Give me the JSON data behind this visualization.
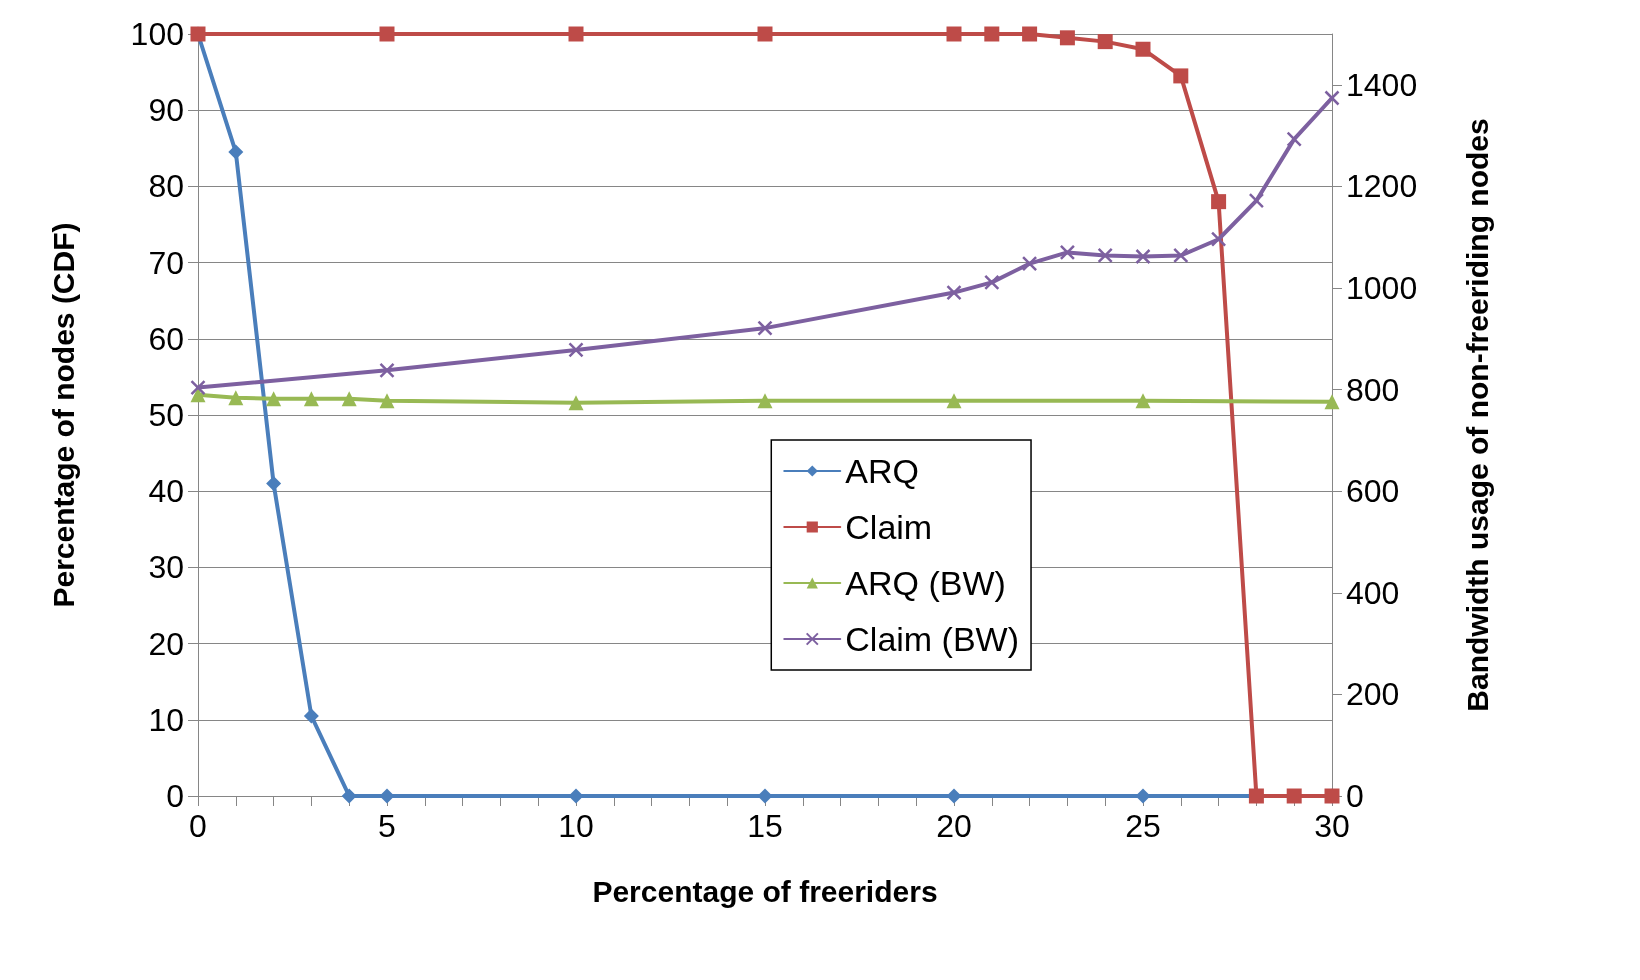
{
  "chart_data": {
    "type": "line",
    "xlabel": "Percentage of freeriders",
    "ylabel": "Percentage of nodes (CDF)",
    "y2label": "Bandwidth usage of non-freeriding nodes",
    "xlim": [
      0,
      30
    ],
    "xticks": [
      0,
      {
        "value": 1,
        "label": null
      },
      {
        "value": 2,
        "label": null
      },
      {
        "value": 3,
        "label": null
      },
      {
        "value": 4,
        "label": null
      },
      5,
      {
        "value": 6,
        "label": null
      },
      {
        "value": 7,
        "label": null
      },
      {
        "value": 8,
        "label": null
      },
      {
        "value": 9,
        "label": null
      },
      10,
      {
        "value": 11,
        "label": null
      },
      {
        "value": 12,
        "label": null
      },
      {
        "value": 13,
        "label": null
      },
      {
        "value": 14,
        "label": null
      },
      15,
      {
        "value": 16,
        "label": null
      },
      {
        "value": 17,
        "label": null
      },
      {
        "value": 18,
        "label": null
      },
      {
        "value": 19,
        "label": null
      },
      20,
      {
        "value": 21,
        "label": null
      },
      {
        "value": 22,
        "label": null
      },
      {
        "value": 23,
        "label": null
      },
      {
        "value": 24,
        "label": null
      },
      25,
      {
        "value": 26,
        "label": null
      },
      {
        "value": 27,
        "label": null
      },
      {
        "value": 28,
        "label": null
      },
      {
        "value": 29,
        "label": null
      },
      30
    ],
    "ylim": [
      0,
      100
    ],
    "yticks": [
      0,
      10,
      20,
      30,
      40,
      50,
      60,
      70,
      80,
      90,
      100
    ],
    "y2lim": [
      0,
      1500
    ],
    "y2ticks": [
      0,
      200,
      400,
      600,
      800,
      1000,
      1200,
      1400
    ],
    "grid": "y",
    "legend": "bottom",
    "line_style": "solid",
    "series": [
      {
        "name": "ARQ",
        "color": "#4a7ebb",
        "marker": "diamond",
        "x": [
          0,
          1,
          2,
          3,
          4,
          5,
          10,
          15,
          20,
          25,
          30
        ],
        "values": [
          100,
          84.5,
          41,
          10.5,
          0,
          0,
          0,
          0,
          0,
          0,
          0
        ]
      },
      {
        "name": "Claim",
        "color": "#be4b48",
        "marker": "square",
        "x": [
          0,
          5,
          10,
          15,
          20,
          21,
          22,
          23,
          24,
          25,
          26,
          27,
          28,
          29,
          30
        ],
        "values": [
          100,
          100,
          100,
          100,
          100,
          100,
          100,
          99.5,
          99,
          98,
          94.5,
          78,
          0,
          0,
          0
        ]
      },
      {
        "name": "ARQ (BW)",
        "color": "#98b954",
        "marker": "triangle",
        "axis": "y2",
        "x": [
          0,
          1,
          2,
          3,
          4,
          5,
          10,
          15,
          20,
          25,
          30
        ],
        "values": [
          790,
          784,
          782,
          782,
          782,
          778,
          774,
          778,
          778,
          778,
          776
        ]
      },
      {
        "name": "Claim (BW)",
        "color": "#7d60a0",
        "marker": "cross",
        "axis": "y2",
        "x": [
          0,
          5,
          10,
          15,
          20,
          21,
          22,
          23,
          24,
          25,
          26,
          27,
          28,
          29,
          30
        ],
        "values": [
          804,
          838,
          878,
          921,
          991,
          1011,
          1048,
          1070,
          1064,
          1062,
          1064,
          1096,
          1172,
          1293,
          1374
        ]
      }
    ]
  }
}
